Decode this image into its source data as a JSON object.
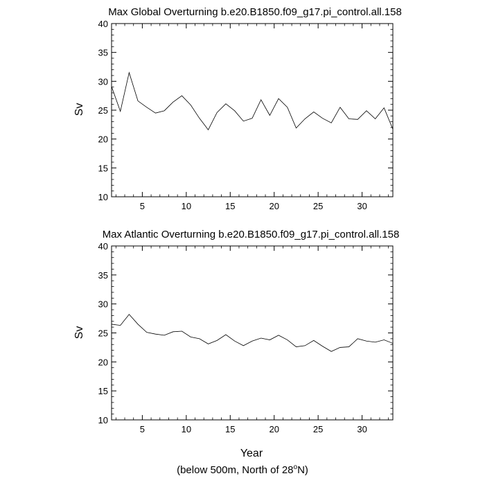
{
  "chart_data": [
    {
      "type": "line",
      "title": "Max Global Overturning b.e20.B1850.f09_g17.pi_control.all.158",
      "xlabel": "",
      "ylabel": "Sv",
      "xlim": [
        1.5,
        33.5
      ],
      "ylim": [
        10,
        40
      ],
      "xticks": [
        5,
        10,
        15,
        20,
        25,
        30
      ],
      "yticks": [
        10,
        15,
        20,
        25,
        30,
        35,
        40
      ],
      "grid": false,
      "x": [
        1.5,
        2.5,
        3.5,
        4.5,
        5.5,
        6.5,
        7.5,
        8.5,
        9.5,
        10.5,
        11.5,
        12.5,
        13.5,
        14.5,
        15.5,
        16.5,
        17.5,
        18.5,
        19.5,
        20.5,
        21.5,
        22.5,
        23.5,
        24.5,
        25.5,
        26.5,
        27.5,
        28.5,
        29.5,
        30.5,
        31.5,
        32.5,
        33.5
      ],
      "series": [
        {
          "name": "Max Global Overturning",
          "values": [
            29.1,
            24.8,
            31.5,
            26.6,
            25.5,
            24.5,
            24.9,
            26.4,
            27.5,
            25.9,
            23.6,
            21.6,
            24.6,
            26.1,
            24.9,
            23.1,
            23.6,
            26.8,
            24.1,
            27.0,
            25.5,
            21.9,
            23.5,
            24.7,
            23.6,
            22.8,
            25.5,
            23.5,
            23.4,
            24.9,
            23.5,
            25.4,
            21.7
          ]
        }
      ]
    },
    {
      "type": "line",
      "title": "Max Atlantic Overturning b.e20.B1850.f09_g17.pi_control.all.158",
      "xlabel": "Year",
      "ylabel": "Sv",
      "xlim": [
        1.5,
        33.5
      ],
      "ylim": [
        10,
        40
      ],
      "xticks": [
        5,
        10,
        15,
        20,
        25,
        30
      ],
      "yticks": [
        10,
        15,
        20,
        25,
        30,
        35,
        40
      ],
      "grid": false,
      "x": [
        1.5,
        2.5,
        3.5,
        4.5,
        5.5,
        6.5,
        7.5,
        8.5,
        9.5,
        10.5,
        11.5,
        12.5,
        13.5,
        14.5,
        15.5,
        16.5,
        17.5,
        18.5,
        19.5,
        20.5,
        21.5,
        22.5,
        23.5,
        24.5,
        25.5,
        26.5,
        27.5,
        28.5,
        29.5,
        30.5,
        31.5,
        32.5,
        33.5
      ],
      "series": [
        {
          "name": "Max Atlantic Overturning",
          "values": [
            26.5,
            26.3,
            28.2,
            26.5,
            25.1,
            24.8,
            24.6,
            25.2,
            25.3,
            24.3,
            24.0,
            23.1,
            23.7,
            24.7,
            23.6,
            22.8,
            23.6,
            24.1,
            23.8,
            24.6,
            23.8,
            22.6,
            22.8,
            23.7,
            22.7,
            21.8,
            22.5,
            22.6,
            24.0,
            23.6,
            23.4,
            23.8,
            23.2
          ]
        }
      ]
    }
  ],
  "caption": {
    "prefix": "(below 500m, North of 28",
    "degree": "o",
    "suffix": "N)"
  }
}
